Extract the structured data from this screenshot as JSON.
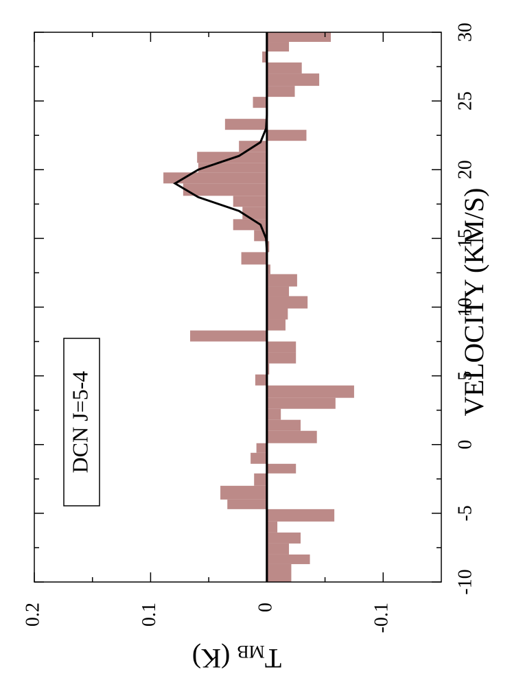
{
  "chart_data": {
    "type": "histogram",
    "xlabel": "VELOCITY (KM/S)",
    "ylabel": {
      "main": "T",
      "sub": "MB",
      "unit": "(K)"
    },
    "annotation": "DCN J=5-4",
    "bins": [
      -10,
      -8.7,
      -8.0,
      -7.2,
      -6.4,
      -5.6,
      -4.7,
      -4.0,
      -3.0,
      -2.1,
      -1.4,
      -0.6,
      0.1,
      1.0,
      1.8,
      2.6,
      3.4,
      4.3,
      5.1,
      5.9,
      6.7,
      7.5,
      8.3,
      9.1,
      9.9,
      10.8,
      11.5,
      12.4,
      13.1,
      14.0,
      14.8,
      15.6,
      16.4,
      17.3,
      18.1,
      19.0,
      19.8,
      20.5,
      21.3,
      22.1,
      22.9,
      23.7,
      24.5,
      25.3,
      26.1,
      27.0,
      27.8,
      28.6,
      29.3,
      30
    ],
    "values": [
      -0.021,
      -0.037,
      -0.019,
      -0.029,
      -0.009,
      -0.058,
      0.034,
      0.04,
      0.011,
      -0.025,
      0.014,
      0.009,
      -0.043,
      -0.029,
      -0.012,
      -0.059,
      -0.075,
      0.01,
      -0.002,
      -0.025,
      -0.025,
      0.066,
      -0.016,
      -0.018,
      -0.035,
      -0.019,
      -0.026,
      -0.003,
      0.022,
      -0.002,
      0.011,
      0.029,
      0.021,
      0.029,
      0.072,
      0.089,
      0.059,
      0.06,
      0.024,
      -0.034,
      0.036,
      0,
      0.012,
      -0.024,
      -0.045,
      -0.03,
      0.004,
      -0.019,
      -0.055
    ],
    "color": "#bc8a88",
    "fit": {
      "color": "#000000",
      "x": [
        -10,
        14,
        15,
        16,
        17,
        18,
        19,
        20,
        21,
        22,
        23,
        24,
        30
      ],
      "values": [
        0,
        0,
        0.0007,
        0.0055,
        0.024,
        0.059,
        0.079,
        0.059,
        0.024,
        0.0055,
        0.0007,
        0,
        0
      ]
    },
    "xlim": [
      -10,
      30
    ],
    "ylim": [
      -0.15,
      0.2
    ],
    "xticks": [
      -10,
      -5,
      0,
      5,
      10,
      15,
      20,
      25,
      30
    ],
    "xminorticks": [
      -7.5,
      -2.5,
      2.5,
      7.5,
      12.5,
      17.5,
      22.5,
      27.5
    ],
    "yticks": [
      0.2,
      0.1,
      0,
      -0.1
    ],
    "yminorticks": [
      0.15,
      0.05,
      -0.05
    ]
  }
}
